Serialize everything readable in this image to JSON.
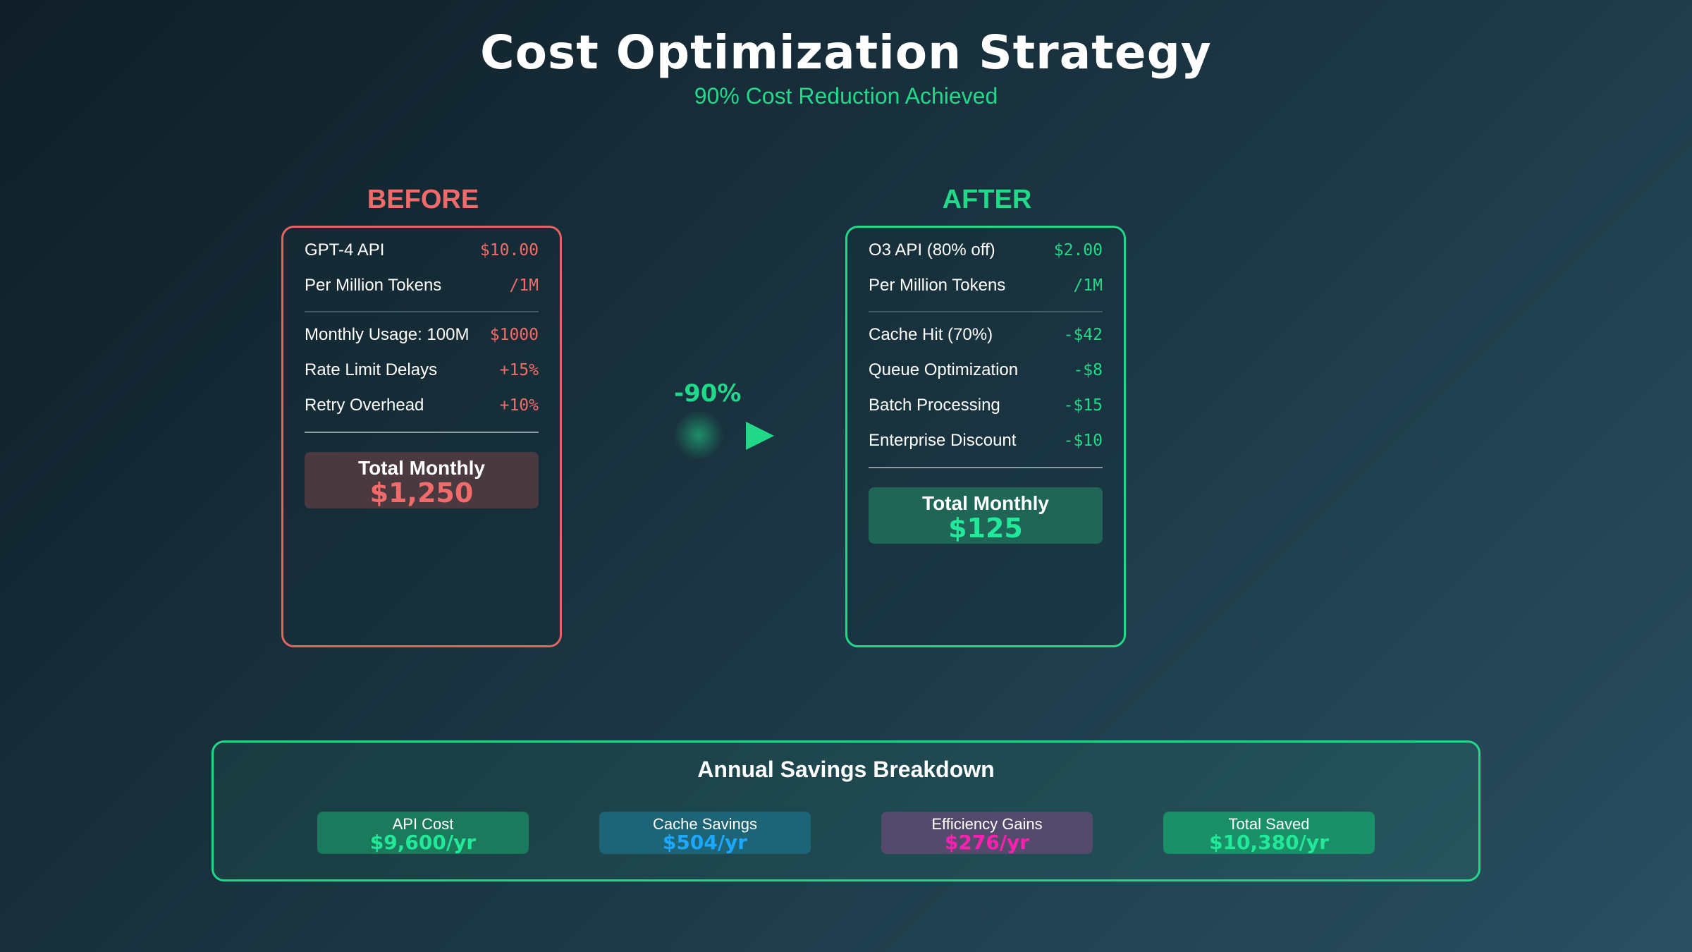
{
  "header": {
    "title": "Cost Optimization Strategy",
    "subtitle": "90% Cost Reduction Achieved"
  },
  "colors": {
    "accent_green": "#22d98a",
    "accent_red": "#f26b6b",
    "accent_blue": "#1ea7ff",
    "accent_magenta": "#ff1fb0"
  },
  "before": {
    "heading": "BEFORE",
    "rows": [
      {
        "label": "GPT-4 API",
        "value": "$10.00"
      },
      {
        "label": "Per Million Tokens",
        "value": "/1M"
      },
      {
        "label": "Monthly Usage: 100M",
        "value": "$1000"
      },
      {
        "label": "Rate Limit Delays",
        "value": "+15%"
      },
      {
        "label": "Retry Overhead",
        "value": "+10%"
      }
    ],
    "total_label": "Total Monthly",
    "total_value": "$1,250"
  },
  "arrow": {
    "label": "-90%",
    "icon": "play-arrow-icon"
  },
  "after": {
    "heading": "AFTER",
    "rows": [
      {
        "label": "O3 API (80% off)",
        "value": "$2.00"
      },
      {
        "label": "Per Million Tokens",
        "value": "/1M"
      },
      {
        "label": "Cache Hit (70%)",
        "value": "-$42"
      },
      {
        "label": "Queue Optimization",
        "value": "-$8"
      },
      {
        "label": "Batch Processing",
        "value": "-$15"
      },
      {
        "label": "Enterprise Discount",
        "value": "-$10"
      }
    ],
    "total_label": "Total Monthly",
    "total_value": "$125"
  },
  "savings": {
    "title": "Annual Savings Breakdown",
    "items": [
      {
        "label": "API Cost",
        "value": "$9,600/yr"
      },
      {
        "label": "Cache Savings",
        "value": "$504/yr"
      },
      {
        "label": "Efficiency Gains",
        "value": "$276/yr"
      },
      {
        "label": "Total Saved",
        "value": "$10,380/yr"
      }
    ]
  }
}
